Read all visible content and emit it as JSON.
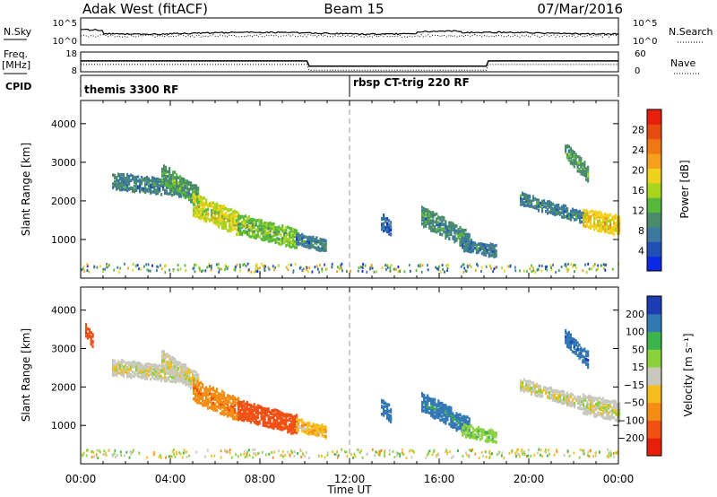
{
  "header": {
    "station": "Adak West (fitACF)",
    "beam": "Beam 15",
    "date": "07/Mar/2016"
  },
  "nsky_panel": {
    "left_label": "N.Sky",
    "right_label": "N.Search",
    "left_ticks": [
      "10^5",
      "10^0"
    ],
    "right_ticks": [
      "10^5",
      "10^0"
    ]
  },
  "freq_panel": {
    "left_label": "Freq.",
    "left_unit": "[MHz]",
    "right_label": "Nave",
    "left_ticks": [
      "18",
      "8"
    ],
    "right_ticks": [
      "60",
      "0"
    ]
  },
  "cpid_panel": {
    "label": "CPID",
    "modes": [
      {
        "name": "themis 3300 RF",
        "start_hour": 0
      },
      {
        "name": "rbsp CT-trig 220 RF",
        "start_hour": 12
      }
    ]
  },
  "power_panel": {
    "ylabel": "Slant Range [km]",
    "yticks": [
      "1000",
      "2000",
      "3000",
      "4000"
    ],
    "colorbar_label": "Power [dB]",
    "colorbar_ticks": [
      "4",
      "8",
      "12",
      "16",
      "20",
      "24",
      "28"
    ],
    "colors": [
      "#0a28e6",
      "#2050b4",
      "#3c78a0",
      "#4a8c6a",
      "#58b83c",
      "#a8d41e",
      "#f0d21e",
      "#f5a01e",
      "#f07814",
      "#e64b0f",
      "#e61e0a"
    ]
  },
  "velocity_panel": {
    "ylabel": "Slant Range [km]",
    "yticks": [
      "1000",
      "2000",
      "3000",
      "4000"
    ],
    "colorbar_label": "Velocity [m s⁻¹]",
    "colorbar_ticks": [
      "200",
      "100",
      "50",
      "15",
      "−15",
      "−50",
      "−100",
      "−200"
    ],
    "colors": [
      "#1e3cb4",
      "#3278b4",
      "#3cb44b",
      "#8cd23c",
      "#c8c8bc",
      "#f5be1e",
      "#f58c14",
      "#f05014",
      "#e61e0a"
    ]
  },
  "xaxis": {
    "label": "Time UT",
    "ticks": [
      "00:00",
      "04:00",
      "08:00",
      "12:00",
      "16:00",
      "20:00",
      "00:00"
    ]
  },
  "chart_data": [
    {
      "type": "line",
      "title": "Adak West (fitACF) Beam 15 07/Mar/2016",
      "xlabel": "Time UT",
      "series": [
        {
          "name": "Freq.",
          "x": [
            0,
            10.1,
            10.2,
            18.1,
            18.2,
            24
          ],
          "values": [
            13.5,
            13.5,
            10.8,
            10.8,
            13.5,
            13.5
          ]
        },
        {
          "name": "Nave",
          "x": [
            0,
            10.1,
            10.2,
            18.1,
            18.2,
            24
          ],
          "values": [
            22,
            22,
            5,
            5,
            22,
            22
          ]
        }
      ]
    },
    {
      "type": "heatmap",
      "title": "Power [dB]",
      "ylabel": "Slant Range [km]",
      "xlabel": "Time UT",
      "xlim": [
        0,
        24
      ],
      "ylim": [
        0,
        4600
      ],
      "zlim": [
        0,
        30
      ],
      "patches": [
        {
          "t": [
            1.4,
            4.6
          ],
          "r": [
            2500,
            2300
          ],
          "width": 260,
          "value": 8
        },
        {
          "t": [
            3.6,
            5.2
          ],
          "r": [
            2700,
            2100
          ],
          "width": 300,
          "value": 11
        },
        {
          "t": [
            5.0,
            7.0
          ],
          "r": [
            1900,
            1400
          ],
          "width": 330,
          "value": 16
        },
        {
          "t": [
            7.0,
            9.6
          ],
          "r": [
            1400,
            1000
          ],
          "width": 300,
          "value": 13
        },
        {
          "t": [
            9.6,
            10.9
          ],
          "r": [
            1000,
            820
          ],
          "width": 200,
          "value": 7
        },
        {
          "t": [
            13.4,
            13.8
          ],
          "r": [
            1450,
            1300
          ],
          "width": 260,
          "value": 6
        },
        {
          "t": [
            15.2,
            17.3
          ],
          "r": [
            1600,
            950
          ],
          "width": 300,
          "value": 9
        },
        {
          "t": [
            17.0,
            18.5
          ],
          "r": [
            860,
            680
          ],
          "width": 160,
          "value": 7
        },
        {
          "t": [
            19.6,
            22.4
          ],
          "r": [
            2050,
            1550
          ],
          "width": 200,
          "value": 8
        },
        {
          "t": [
            22.4,
            24.0
          ],
          "r": [
            1550,
            1350
          ],
          "width": 300,
          "value": 18
        },
        {
          "t": [
            21.6,
            22.6
          ],
          "r": [
            3300,
            2700
          ],
          "width": 220,
          "value": 10
        }
      ]
    },
    {
      "type": "heatmap",
      "title": "Velocity [m s⁻¹]",
      "ylabel": "Slant Range [km]",
      "xlabel": "Time UT",
      "xlim": [
        0,
        24
      ],
      "ylim": [
        0,
        4600
      ],
      "zlim": [
        -250,
        250
      ],
      "patches": [
        {
          "t": [
            1.4,
            4.6
          ],
          "r": [
            2500,
            2300
          ],
          "width": 260,
          "value": 0
        },
        {
          "t": [
            3.6,
            5.2
          ],
          "r": [
            2700,
            2100
          ],
          "width": 300,
          "value": -5
        },
        {
          "t": [
            5.0,
            7.0
          ],
          "r": [
            1900,
            1400
          ],
          "width": 330,
          "value": -80
        },
        {
          "t": [
            7.0,
            9.6
          ],
          "r": [
            1400,
            1000
          ],
          "width": 300,
          "value": -140
        },
        {
          "t": [
            9.6,
            10.9
          ],
          "r": [
            1000,
            820
          ],
          "width": 200,
          "value": -40
        },
        {
          "t": [
            13.4,
            13.8
          ],
          "r": [
            1450,
            1300
          ],
          "width": 260,
          "value": 150
        },
        {
          "t": [
            15.2,
            17.3
          ],
          "r": [
            1600,
            950
          ],
          "width": 300,
          "value": 120
        },
        {
          "t": [
            17.0,
            18.5
          ],
          "r": [
            860,
            680
          ],
          "width": 160,
          "value": 40
        },
        {
          "t": [
            19.6,
            22.4
          ],
          "r": [
            2050,
            1550
          ],
          "width": 200,
          "value": 0
        },
        {
          "t": [
            22.4,
            24.0
          ],
          "r": [
            1550,
            1350
          ],
          "width": 300,
          "value": 2
        },
        {
          "t": [
            21.6,
            22.6
          ],
          "r": [
            3300,
            2700
          ],
          "width": 220,
          "value": 180
        },
        {
          "t": [
            0.2,
            0.5
          ],
          "r": [
            3450,
            3200
          ],
          "width": 200,
          "value": -180
        }
      ]
    }
  ]
}
